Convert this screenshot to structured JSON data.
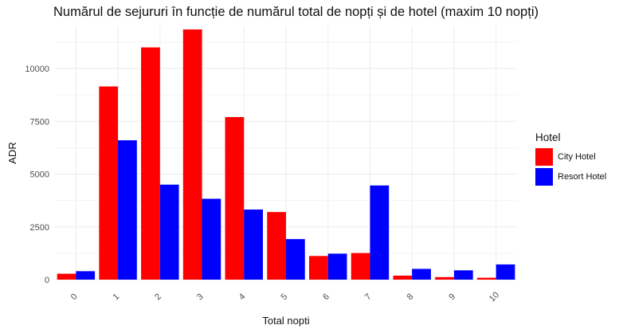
{
  "chart_data": {
    "type": "bar",
    "title": "Numărul de sejururi în funcție de numărul total de nopți și de hotel (maxim 10 nopți)",
    "xlabel": "Total nopti",
    "ylabel": "ADR",
    "categories": [
      "0",
      "1",
      "2",
      "3",
      "4",
      "5",
      "6",
      "7",
      "8",
      "9",
      "10"
    ],
    "ylim": [
      0,
      12000
    ],
    "yticks": [
      0,
      2500,
      5000,
      7500,
      10000
    ],
    "ytick_labels": [
      "0",
      "2500",
      "5000",
      "7500",
      "10000"
    ],
    "grid": true,
    "legend_title": "Hotel",
    "legend_position": "right",
    "series": [
      {
        "name": "City Hotel",
        "color": "#ff0000",
        "values": [
          280,
          9150,
          11000,
          11850,
          7700,
          3200,
          1120,
          1260,
          190,
          120,
          90
        ]
      },
      {
        "name": "Resort Hotel",
        "color": "#0000ff",
        "values": [
          400,
          6600,
          4500,
          3830,
          3320,
          1920,
          1230,
          4460,
          510,
          440,
          720
        ]
      }
    ]
  }
}
